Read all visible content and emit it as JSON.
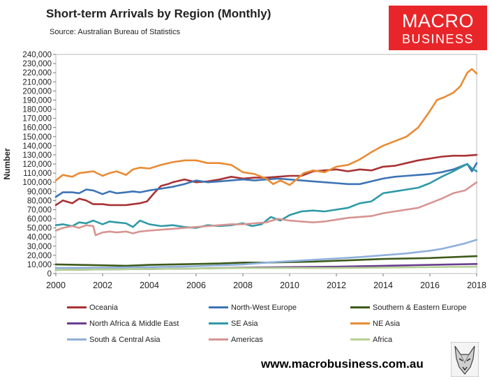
{
  "header": {
    "title": "Short-term Arrivals by Region (Monthly)",
    "source": "Source: Australian Bureau of Statistics"
  },
  "logo": {
    "line1": "MACRO",
    "line2": "BUSINESS",
    "bg_color": "#e8262a"
  },
  "footer": {
    "website": "www.macrobusiness.com.au"
  },
  "chart_data": {
    "type": "line",
    "ylabel": "Number",
    "xlabel": "",
    "xlim": [
      2000,
      2018
    ],
    "ylim": [
      0,
      240000
    ],
    "grid": false,
    "x_ticks": [
      2000,
      2002,
      2004,
      2006,
      2008,
      2010,
      2012,
      2014,
      2016,
      2018
    ],
    "x_tick_labels": [
      "2000",
      "2002",
      "2004",
      "2006",
      "2008",
      "2010",
      "2012",
      "2014",
      "2016",
      "2018"
    ],
    "y_ticks": [
      0,
      10000,
      20000,
      30000,
      40000,
      50000,
      60000,
      70000,
      80000,
      90000,
      100000,
      110000,
      120000,
      130000,
      140000,
      150000,
      160000,
      170000,
      180000,
      190000,
      200000,
      210000,
      220000,
      230000,
      240000
    ],
    "y_tick_labels": [
      "0",
      "10,000",
      "20,000",
      "30,000",
      "40,000",
      "50,000",
      "60,000",
      "70,000",
      "80,000",
      "90,000",
      "100,000",
      "110,000",
      "120,000",
      "130,000",
      "140,000",
      "150,000",
      "160,000",
      "170,000",
      "180,000",
      "190,000",
      "200,000",
      "210,000",
      "220,000",
      "230,000",
      "240,000"
    ],
    "legend_position": "bottom",
    "series": [
      {
        "name": "Oceania",
        "color": "#a83234",
        "x": [
          2000,
          2000.3,
          2000.7,
          2001,
          2001.3,
          2001.6,
          2002,
          2002.3,
          2002.6,
          2003,
          2003.3,
          2003.6,
          2003.9,
          2004.2,
          2004.5,
          2004.8,
          2005,
          2005.5,
          2006,
          2006.5,
          2007,
          2007.5,
          2008,
          2008.5,
          2009,
          2009.5,
          2010,
          2010.5,
          2011,
          2011.5,
          2012,
          2012.5,
          2013,
          2013.5,
          2014,
          2014.5,
          2015,
          2015.5,
          2016,
          2016.5,
          2017,
          2017.5,
          2018
        ],
        "y": [
          75000,
          80000,
          77000,
          82000,
          80000,
          76000,
          76000,
          75000,
          75000,
          75000,
          76000,
          77000,
          79000,
          88000,
          96000,
          98000,
          100000,
          103000,
          100000,
          101000,
          103000,
          106000,
          104000,
          105000,
          105000,
          106000,
          107000,
          107000,
          112000,
          113000,
          114000,
          112000,
          114000,
          113000,
          117000,
          118000,
          121000,
          124000,
          126000,
          128000,
          129000,
          129000,
          130000
        ]
      },
      {
        "name": "North-West Europe",
        "color": "#3d74b5",
        "x": [
          2000,
          2000.3,
          2000.7,
          2001,
          2001.3,
          2001.6,
          2002,
          2002.3,
          2002.6,
          2003,
          2003.3,
          2003.6,
          2004,
          2004.5,
          2005,
          2005.5,
          2006,
          2006.5,
          2007,
          2007.5,
          2008,
          2008.5,
          2009,
          2009.5,
          2010,
          2010.5,
          2011,
          2011.5,
          2012,
          2012.5,
          2013,
          2013.5,
          2014,
          2014.5,
          2015,
          2015.5,
          2016,
          2016.5,
          2017,
          2017.3,
          2017.6,
          2017.8,
          2018
        ],
        "y": [
          84000,
          89000,
          89000,
          88000,
          92000,
          91000,
          87000,
          90000,
          88000,
          89000,
          90000,
          89000,
          91000,
          93000,
          95000,
          98000,
          102000,
          100000,
          101000,
          102000,
          103000,
          102000,
          103000,
          104000,
          103000,
          102000,
          101000,
          100000,
          99000,
          98000,
          98000,
          101000,
          104000,
          106000,
          107000,
          108000,
          109000,
          111000,
          114000,
          117000,
          120000,
          112000,
          121000
        ]
      },
      {
        "name": "Southern & Eastern Europe",
        "color": "#3d5a1a",
        "x": [
          2000,
          2001,
          2002,
          2003,
          2004,
          2005,
          2006,
          2007,
          2008,
          2009,
          2010,
          2011,
          2012,
          2013,
          2014,
          2015,
          2016,
          2017,
          2018
        ],
        "y": [
          10000,
          9500,
          9000,
          8500,
          9500,
          10000,
          10500,
          11000,
          12000,
          12000,
          12500,
          13000,
          14000,
          15000,
          16000,
          16500,
          17000,
          18000,
          19000
        ]
      },
      {
        "name": "North Africa & Middle East",
        "color": "#6b3d8f",
        "x": [
          2000,
          2002,
          2004,
          2006,
          2008,
          2010,
          2012,
          2014,
          2016,
          2018
        ],
        "y": [
          4000,
          4500,
          5000,
          5500,
          6500,
          7000,
          7500,
          8500,
          9500,
          10500
        ]
      },
      {
        "name": "SE Asia",
        "color": "#2e9aa5",
        "x": [
          2000,
          2000.3,
          2000.7,
          2001,
          2001.3,
          2001.6,
          2002,
          2002.3,
          2002.6,
          2003,
          2003.3,
          2003.6,
          2004,
          2004.5,
          2005,
          2005.5,
          2006,
          2006.5,
          2007,
          2007.5,
          2008,
          2008.4,
          2008.8,
          2009.2,
          2009.6,
          2010,
          2010.5,
          2011,
          2011.5,
          2012,
          2012.5,
          2013,
          2013.5,
          2014,
          2014.5,
          2015,
          2015.5,
          2016,
          2016.5,
          2017,
          2017.3,
          2017.6,
          2017.8,
          2018
        ],
        "y": [
          53000,
          54000,
          52000,
          56000,
          55000,
          58000,
          54000,
          57000,
          56000,
          55000,
          51000,
          58000,
          54000,
          52000,
          53000,
          51000,
          50000,
          53000,
          52000,
          53000,
          55000,
          52000,
          54000,
          62000,
          58000,
          64000,
          68000,
          69000,
          68000,
          70000,
          72000,
          77000,
          79000,
          88000,
          90000,
          92000,
          94000,
          99000,
          106000,
          112000,
          116000,
          120000,
          115000,
          112000
        ]
      },
      {
        "name": "NE Asia",
        "color": "#e88b35",
        "x": [
          2000,
          2000.3,
          2000.7,
          2001,
          2001.3,
          2001.6,
          2002,
          2002.3,
          2002.6,
          2003,
          2003.3,
          2003.6,
          2004,
          2004.5,
          2005,
          2005.5,
          2006,
          2006.5,
          2007,
          2007.5,
          2008,
          2008.5,
          2009,
          2009.3,
          2009.6,
          2010,
          2010.3,
          2010.6,
          2011,
          2011.5,
          2012,
          2012.5,
          2013,
          2013.5,
          2014,
          2014.5,
          2015,
          2015.5,
          2016,
          2016.3,
          2016.6,
          2017,
          2017.3,
          2017.6,
          2017.8,
          2018
        ],
        "y": [
          102000,
          108000,
          106000,
          110000,
          111000,
          112000,
          107000,
          110000,
          112000,
          108000,
          114000,
          116000,
          115000,
          119000,
          122000,
          124000,
          124000,
          121000,
          121000,
          119000,
          111000,
          109000,
          104000,
          98000,
          102000,
          97000,
          103000,
          110000,
          113000,
          111000,
          117000,
          119000,
          125000,
          133000,
          140000,
          145000,
          150000,
          160000,
          178000,
          190000,
          193000,
          198000,
          205000,
          220000,
          224000,
          219000
        ]
      },
      {
        "name": "South & Central Asia",
        "color": "#8fb0da",
        "x": [
          2000,
          2002,
          2004,
          2006,
          2008,
          2009,
          2010,
          2011,
          2012,
          2013,
          2014,
          2015,
          2016,
          2016.5,
          2017,
          2017.5,
          2018
        ],
        "y": [
          6000,
          6500,
          7000,
          8000,
          10000,
          12000,
          13500,
          15000,
          16500,
          18000,
          20000,
          22000,
          25000,
          27000,
          30000,
          33000,
          37000
        ]
      },
      {
        "name": "Americas",
        "color": "#d69492",
        "x": [
          2000,
          2000.3,
          2000.7,
          2001,
          2001.3,
          2001.6,
          2001.7,
          2002,
          2002.3,
          2002.6,
          2003,
          2003.3,
          2003.6,
          2004,
          2004.5,
          2005,
          2005.5,
          2006,
          2006.5,
          2007,
          2007.5,
          2008,
          2008.5,
          2009,
          2009.5,
          2010,
          2010.5,
          2011,
          2011.5,
          2012,
          2012.5,
          2013,
          2013.5,
          2014,
          2014.5,
          2015,
          2015.5,
          2016,
          2016.5,
          2017,
          2017.5,
          2018
        ],
        "y": [
          47000,
          50000,
          52000,
          50000,
          53000,
          52000,
          42000,
          45000,
          46000,
          45000,
          46000,
          44000,
          46000,
          47000,
          48000,
          49000,
          50000,
          51000,
          52000,
          53000,
          54000,
          54000,
          55000,
          56000,
          60000,
          58000,
          57000,
          56000,
          57000,
          59000,
          61000,
          62000,
          63000,
          66000,
          68000,
          70000,
          72000,
          77000,
          82000,
          88000,
          91000,
          100000
        ]
      },
      {
        "name": "Africa",
        "color": "#b5d196",
        "x": [
          2000,
          2002,
          2004,
          2006,
          2008,
          2010,
          2012,
          2014,
          2016,
          2018
        ],
        "y": [
          4000,
          4500,
          5000,
          5500,
          6000,
          6000,
          6000,
          6500,
          7000,
          7500
        ]
      }
    ]
  }
}
